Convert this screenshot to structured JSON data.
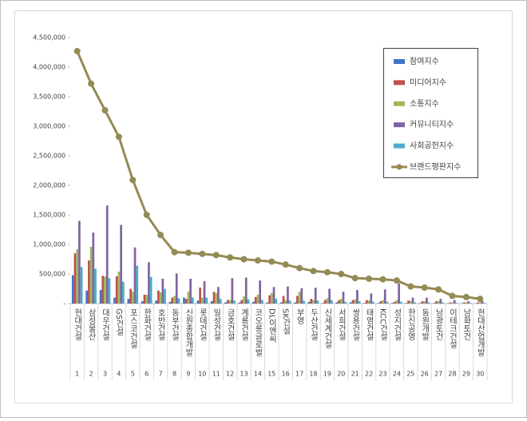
{
  "chart_data": {
    "type": "bar",
    "categories": [
      "현대건설",
      "삼성물산",
      "대우건설",
      "GS건설",
      "포스코건설",
      "한화건설",
      "호반건설",
      "동부건설",
      "신원종합개발",
      "롯데건설",
      "일성건설",
      "금호건설",
      "계룡건설",
      "코오롱글로벌",
      "DL이앤씨",
      "SK건설",
      "부영",
      "두산건설",
      "신세계건설",
      "서희건설",
      "쌍용건설",
      "태영건설",
      "KCC건설",
      "성지건설",
      "한신공영",
      "동원개발",
      "남광토건",
      "이테크건설",
      "남화토건",
      "현대산업개발"
    ],
    "ranks": [
      1,
      2,
      3,
      4,
      5,
      6,
      7,
      8,
      9,
      10,
      11,
      12,
      13,
      14,
      15,
      16,
      17,
      18,
      19,
      20,
      21,
      22,
      23,
      24,
      25,
      26,
      27,
      28,
      29,
      30
    ],
    "series": [
      {
        "name": "참여지수",
        "color": "#4472c4",
        "values": [
          480000,
          220000,
          230000,
          100000,
          80000,
          40000,
          50000,
          30000,
          100000,
          50000,
          40000,
          20000,
          20000,
          30000,
          20000,
          20000,
          20000,
          30000,
          10000,
          20000,
          20000,
          10000,
          10000,
          10000,
          10000,
          10000,
          10000,
          5000,
          5000,
          5000
        ]
      },
      {
        "name": "미디어지수",
        "color": "#c0504d",
        "values": [
          850000,
          730000,
          470000,
          460000,
          250000,
          150000,
          220000,
          100000,
          80000,
          270000,
          200000,
          60000,
          60000,
          110000,
          140000,
          130000,
          130000,
          80000,
          60000,
          60000,
          60000,
          60000,
          40000,
          30000,
          50000,
          40000,
          40000,
          20000,
          20000,
          20000
        ]
      },
      {
        "name": "소통지수",
        "color": "#9bbb59",
        "values": [
          920000,
          960000,
          460000,
          540000,
          200000,
          150000,
          190000,
          130000,
          200000,
          100000,
          180000,
          60000,
          120000,
          150000,
          180000,
          60000,
          200000,
          60000,
          90000,
          80000,
          70000,
          50000,
          60000,
          60000,
          40000,
          40000,
          40000,
          20000,
          20000,
          20000
        ]
      },
      {
        "name": "커뮤니티지수",
        "color": "#8064a2",
        "values": [
          1400000,
          1200000,
          1660000,
          1330000,
          950000,
          700000,
          420000,
          510000,
          420000,
          380000,
          280000,
          430000,
          440000,
          390000,
          280000,
          290000,
          260000,
          270000,
          250000,
          200000,
          230000,
          170000,
          240000,
          340000,
          100000,
          100000,
          80000,
          60000,
          40000,
          40000
        ]
      },
      {
        "name": "사회공헌지수",
        "color": "#4bacc6",
        "values": [
          620000,
          590000,
          430000,
          370000,
          640000,
          450000,
          250000,
          90000,
          100000,
          100000,
          80000,
          50000,
          70000,
          60000,
          80000,
          50000,
          50000,
          50000,
          60000,
          30000,
          40000,
          30000,
          30000,
          30000,
          20000,
          20000,
          20000,
          10000,
          10000,
          10000
        ]
      },
      {
        "name": "브랜드평판지수",
        "type": "line",
        "color": "#948a54",
        "values": [
          4270000,
          3720000,
          3270000,
          2820000,
          2090000,
          1500000,
          1160000,
          870000,
          860000,
          840000,
          820000,
          780000,
          750000,
          730000,
          710000,
          660000,
          600000,
          550000,
          530000,
          500000,
          430000,
          420000,
          410000,
          390000,
          290000,
          270000,
          240000,
          130000,
          110000,
          80000
        ]
      }
    ],
    "ylim": [
      0,
      4500000
    ],
    "yticks": [
      {
        "value": 0,
        "label": "-"
      },
      {
        "value": 500000,
        "label": "500,000"
      },
      {
        "value": 1000000,
        "label": "1,000,000"
      },
      {
        "value": 1500000,
        "label": "1,500,000"
      },
      {
        "value": 2000000,
        "label": "2,000,000"
      },
      {
        "value": 2500000,
        "label": "2,500,000"
      },
      {
        "value": 3000000,
        "label": "3,000,000"
      },
      {
        "value": 3500000,
        "label": "3,500,000"
      },
      {
        "value": 4000000,
        "label": "4,000,000"
      },
      {
        "value": 4500000,
        "label": "4,500,000"
      }
    ],
    "legend": "top-right"
  }
}
